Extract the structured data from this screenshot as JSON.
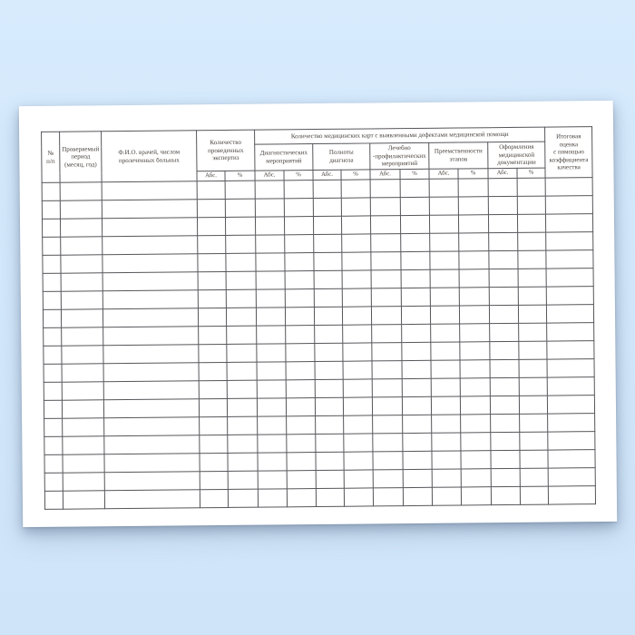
{
  "colors": {
    "background_top": "#d7ebfd",
    "background_bottom": "#cfe4f9",
    "paper": "#ffffff",
    "grid_line": "#57555a",
    "text": "#4a443f"
  },
  "document": {
    "type": "blank-table-form",
    "orientation": "landscape"
  },
  "table": {
    "header": {
      "num": "№\nп/п",
      "period": "Проверяемый\nпериод\n(месяц, год)",
      "fio": "Ф.И.О. врачей, числом\nпролеченных больных",
      "expertises": "Количество\nпроведенных\nэкспертиз",
      "defects_group": "Количество медицинских карт с выявленными дефектами медицинской помощи",
      "sub_diagnostic": "Диагностических\nмероприятий",
      "sub_diagnosis": "Полноты\nдиагноза",
      "sub_treatment": "Лечебно\n-профилактических\nмероприятий",
      "sub_continuity": "Преемственности\nэтапов",
      "sub_documentation": "Оформления\nмедицинской\nдокументации",
      "final_score": "Итоговая\nоценка\nс помощью\nкоэффициента\nкачества",
      "abs": "Абс.",
      "pct": "%"
    },
    "body": {
      "rows": 18,
      "cols": 16,
      "cell_values": ""
    }
  }
}
